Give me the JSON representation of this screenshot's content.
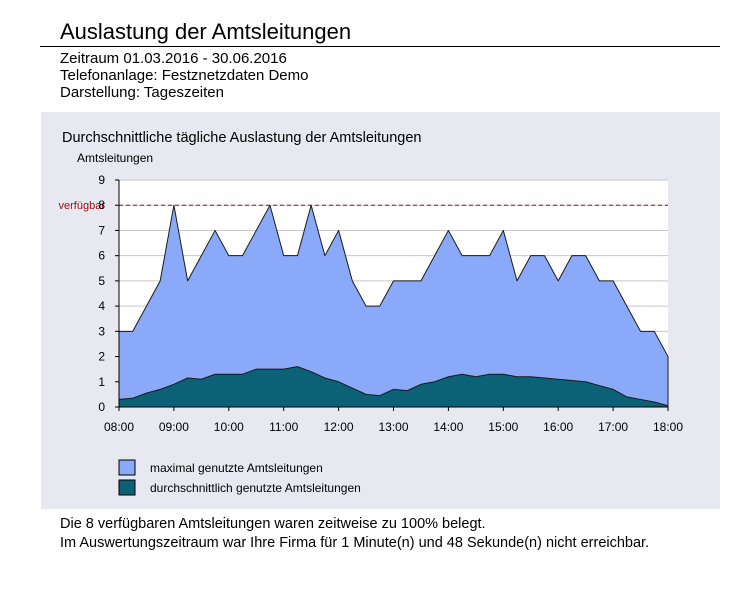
{
  "report": {
    "title": "Auslastung der Amtsleitungen",
    "period": "Zeitraum 01.03.2016 - 30.06.2016",
    "system": "Telefonanlage: Festznetzdaten Demo",
    "view": "Darstellung: Tageszeiten"
  },
  "colors": {
    "max_fill": "#8aa9f8",
    "avg_fill": "#0b6175",
    "panel_bg": "#e8e8f1",
    "available_line": "#a01010"
  },
  "chart_data": {
    "type": "area",
    "title": "Durchschnittliche tägliche Auslastung der Amtsleitungen",
    "ylabel": "Amtsleitungen",
    "xlabel": "",
    "ylim": [
      0,
      9
    ],
    "y_ticks": [
      "0",
      "1",
      "2",
      "3",
      "4",
      "5",
      "6",
      "7",
      "8",
      "9"
    ],
    "x_ticks": [
      "08:00",
      "09:00",
      "10:00",
      "11:00",
      "12:00",
      "13:00",
      "14:00",
      "15:00",
      "16:00",
      "17:00",
      "18:00"
    ],
    "grid": true,
    "reference_line": {
      "label": "verfügbar",
      "value": 8
    },
    "legend_position": "bottom-left",
    "x_hours": [
      8.0,
      8.25,
      8.5,
      8.75,
      9.0,
      9.25,
      9.5,
      9.75,
      10.0,
      10.25,
      10.5,
      10.75,
      11.0,
      11.25,
      11.5,
      11.75,
      12.0,
      12.25,
      12.5,
      12.75,
      13.0,
      13.25,
      13.5,
      13.75,
      14.0,
      14.25,
      14.5,
      14.75,
      15.0,
      15.25,
      15.5,
      15.75,
      16.0,
      16.25,
      16.5,
      16.75,
      17.0,
      17.25,
      17.5,
      17.75,
      18.0
    ],
    "series": [
      {
        "name": "maximal genutzte Amtsleitungen",
        "values": [
          3,
          3,
          4,
          5,
          8,
          5,
          6,
          7,
          6,
          6,
          7,
          8,
          6,
          6,
          8,
          6,
          7,
          5,
          4,
          4,
          5,
          5,
          5,
          6,
          7,
          6,
          6,
          6,
          7,
          5,
          6,
          6,
          5,
          6,
          6,
          5,
          5,
          4,
          3,
          3,
          2
        ]
      },
      {
        "name": "durchschnittlich genutzte Amtsleitungen",
        "values": [
          0.3,
          0.35,
          0.55,
          0.7,
          0.9,
          1.15,
          1.1,
          1.3,
          1.3,
          1.3,
          1.5,
          1.5,
          1.5,
          1.6,
          1.4,
          1.15,
          1.0,
          0.75,
          0.5,
          0.45,
          0.7,
          0.65,
          0.9,
          1.0,
          1.2,
          1.3,
          1.2,
          1.3,
          1.3,
          1.2,
          1.2,
          1.15,
          1.1,
          1.05,
          1.0,
          0.85,
          0.7,
          0.4,
          0.3,
          0.2,
          0.05
        ]
      }
    ]
  },
  "notes": {
    "line1": "Die 8 verfügbaren Amtsleitungen waren zeitweise zu 100% belegt.",
    "line2": "Im Auswertungszeitraum war Ihre Firma für 1 Minute(n) und 48 Sekunde(n) nicht erreichbar."
  }
}
